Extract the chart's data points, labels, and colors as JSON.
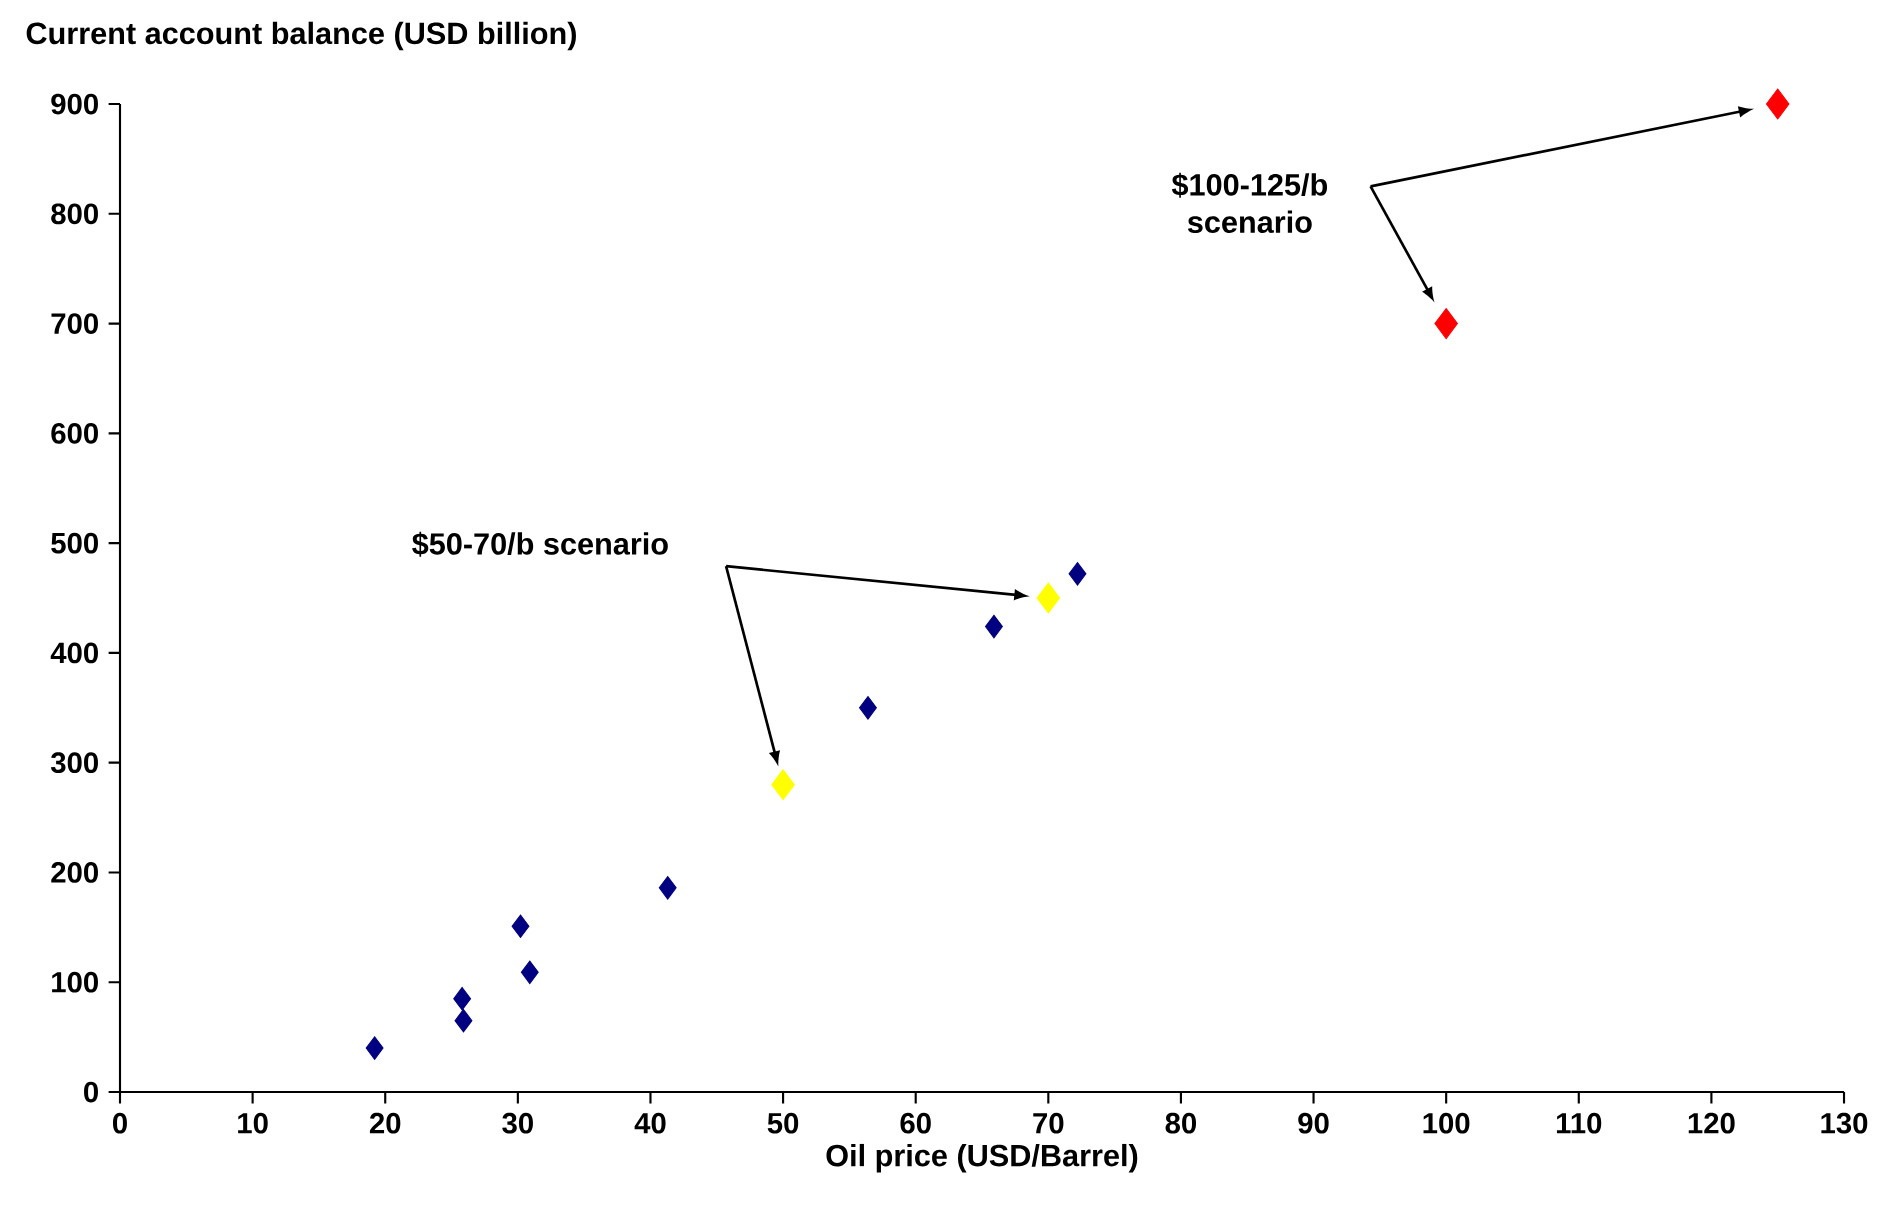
{
  "chart_data": {
    "type": "scatter",
    "xlabel": "Oil price (USD/Barrel)",
    "ylabel": "Current account balance (USD billion)",
    "xlim": [
      0,
      130
    ],
    "xticks": [
      0,
      10,
      20,
      30,
      40,
      50,
      60,
      70,
      80,
      90,
      100,
      110,
      120,
      130
    ],
    "ylim": [
      0,
      900
    ],
    "yticks": [
      0,
      100,
      200,
      300,
      400,
      500,
      600,
      700,
      800,
      900
    ],
    "marker": "diamond",
    "grid": false,
    "series": [
      {
        "color": "#000080",
        "x": [
          19.2,
          25.8,
          25.9,
          30.2,
          30.9,
          41.3,
          56.4,
          65.9,
          72.2
        ],
        "values": [
          40,
          85,
          65,
          151,
          109,
          186,
          350,
          424,
          472
        ]
      },
      {
        "color": "#ffff00",
        "x": [
          50,
          70
        ],
        "values": [
          280,
          450
        ]
      },
      {
        "color": "#ff0000",
        "x": [
          100,
          125
        ],
        "values": [
          700,
          900
        ]
      }
    ],
    "annotations": [
      "$50-70/b scenario",
      "$100-125/b scenario"
    ]
  }
}
